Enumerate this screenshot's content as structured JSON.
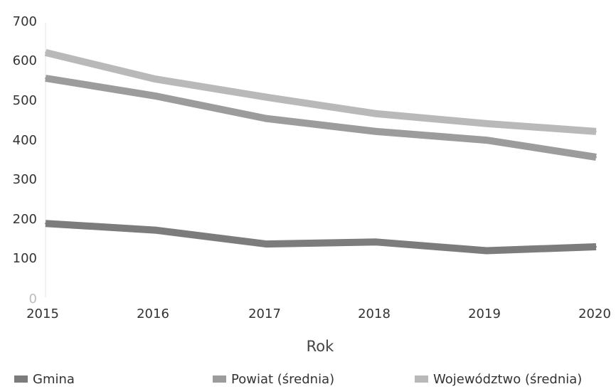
{
  "chart_data": {
    "type": "line",
    "title": "",
    "xlabel": "Rok",
    "ylabel": "",
    "x": [
      "2015",
      "2016",
      "2017",
      "2018",
      "2019",
      "2020"
    ],
    "ylim": [
      0,
      700
    ],
    "yticks": [
      "0",
      "100",
      "200",
      "300",
      "400",
      "500",
      "600",
      "700"
    ],
    "grid": false,
    "legend_position": "bottom",
    "series": [
      {
        "name": "Gmina",
        "values": [
          187,
          170,
          135,
          140,
          118,
          128
        ],
        "color": "#7c7c7c"
      },
      {
        "name": "Powiat (średnia)",
        "values": [
          555,
          510,
          453,
          420,
          398,
          355
        ],
        "color": "#9c9c9c"
      },
      {
        "name": "Województwo (średnia)",
        "values": [
          620,
          553,
          507,
          465,
          440,
          420
        ],
        "color": "#b9b9b9"
      }
    ]
  }
}
